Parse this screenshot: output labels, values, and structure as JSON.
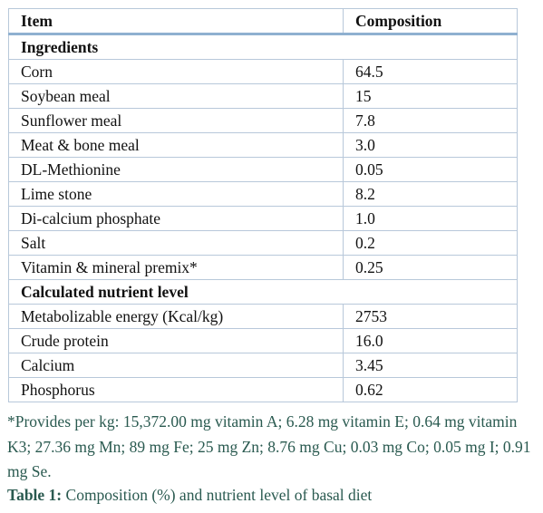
{
  "table": {
    "header": [
      "Item",
      "Composition"
    ],
    "sections": [
      {
        "title": "Ingredients",
        "rows": [
          [
            "Corn",
            "64.5"
          ],
          [
            "Soybean meal",
            "15"
          ],
          [
            "Sunflower meal",
            "7.8"
          ],
          [
            "Meat & bone meal",
            "3.0"
          ],
          [
            "DL-Methionine",
            "0.05"
          ],
          [
            "Lime stone",
            "8.2"
          ],
          [
            "Di-calcium phosphate",
            "1.0"
          ],
          [
            "Salt",
            "0.2"
          ],
          [
            "Vitamin & mineral premix*",
            "0.25"
          ]
        ]
      },
      {
        "title": "Calculated nutrient level",
        "rows": [
          [
            "Metabolizable energy (Kcal/kg)",
            "2753"
          ],
          [
            "Crude protein",
            "16.0"
          ],
          [
            "Calcium",
            "3.45"
          ],
          [
            "Phosphorus",
            "0.62"
          ]
        ]
      }
    ]
  },
  "footnote": "*Provides per kg: 15,372.00 mg vitamin A; 6.28 mg vitamin E; 0.64 mg vitamin K3; 27.36 mg Mn; 89 mg Fe; 25 mg Zn; 8.76 mg Cu; 0.03 mg Co; 0.05 mg I; 0.91 mg Se.",
  "caption": {
    "label": "Table 1:",
    "text": "Composition (%) and nutrient level of basal diet"
  }
}
